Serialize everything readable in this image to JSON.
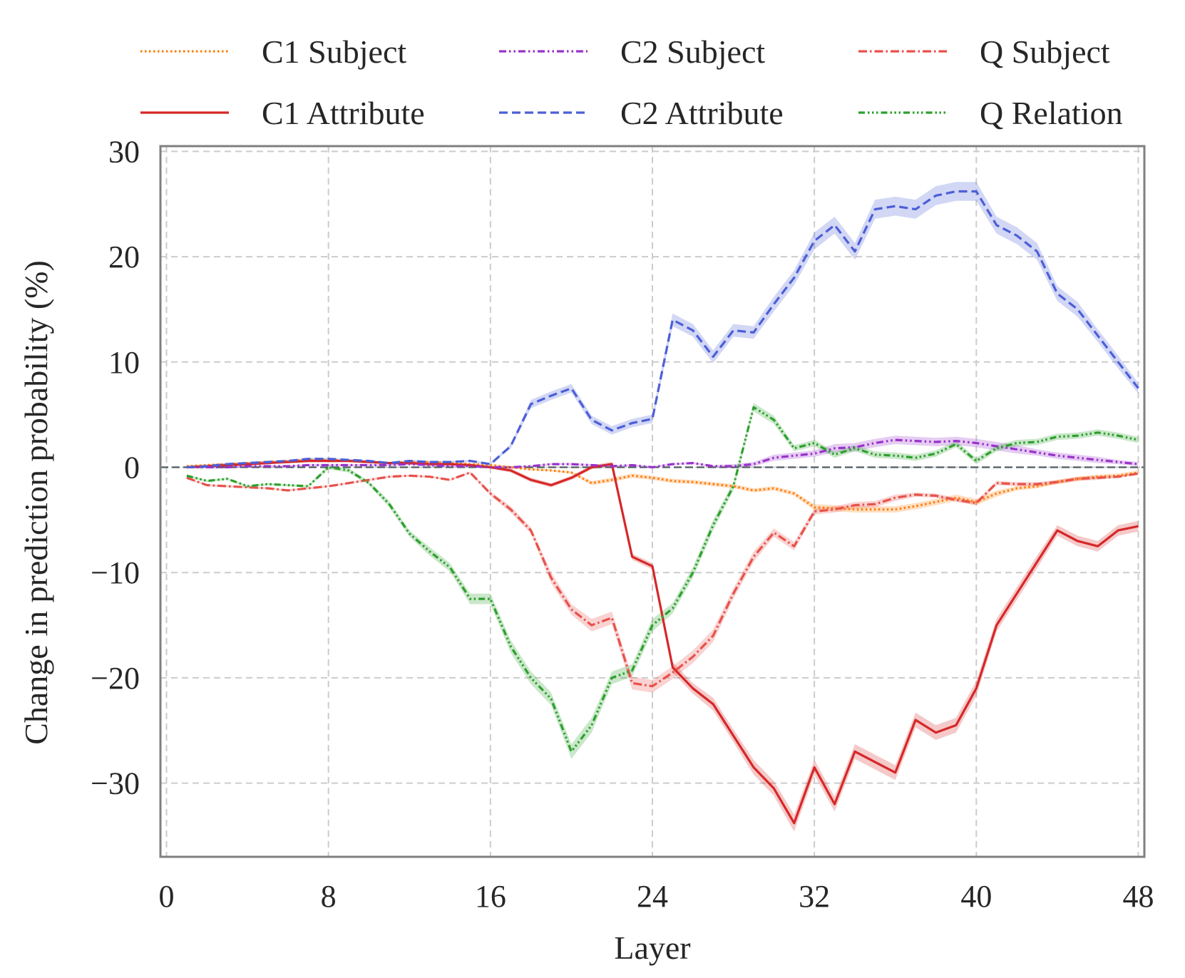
{
  "chart_data": {
    "type": "line",
    "title": "",
    "xlabel": "Layer",
    "ylabel": "Change in prediction probability (%)",
    "xlim": [
      -0.3,
      48.3
    ],
    "ylim": [
      -37,
      30.5
    ],
    "xticks": [
      0,
      8,
      16,
      24,
      32,
      40,
      48
    ],
    "yticks": [
      30,
      20,
      10,
      0,
      -10,
      -20,
      -30
    ],
    "x_tick_labels": [
      "0",
      "8",
      "16",
      "24",
      "32",
      "40",
      "48"
    ],
    "y_tick_labels": [
      "30",
      "20",
      "10",
      "0",
      "−10",
      "−20",
      "−30"
    ],
    "grid": true,
    "legend_position": "top",
    "x": [
      1,
      2,
      3,
      4,
      5,
      6,
      7,
      8,
      9,
      10,
      11,
      12,
      13,
      14,
      15,
      16,
      17,
      18,
      19,
      20,
      21,
      22,
      23,
      24,
      25,
      26,
      27,
      28,
      29,
      30,
      31,
      32,
      33,
      34,
      35,
      36,
      37,
      38,
      39,
      40,
      41,
      42,
      43,
      44,
      45,
      46,
      47,
      48
    ],
    "series": [
      {
        "name": "C1 Subject",
        "color": "#ff7f0e",
        "dash": "dotted",
        "values": [
          0.1,
          0.2,
          0.3,
          0.4,
          0.5,
          0.6,
          0.7,
          0.7,
          0.6,
          0.5,
          0.4,
          0.5,
          0.5,
          0.4,
          0.3,
          0.2,
          0.0,
          -0.2,
          -0.3,
          -0.5,
          -1.5,
          -1.2,
          -0.8,
          -1.0,
          -1.3,
          -1.4,
          -1.6,
          -1.8,
          -2.2,
          -2.0,
          -2.5,
          -3.8,
          -3.9,
          -4.0,
          -4.0,
          -4.0,
          -3.7,
          -3.3,
          -2.9,
          -3.3,
          -2.5,
          -2.0,
          -1.8,
          -1.4,
          -1.1,
          -0.9,
          -0.8,
          -0.5
        ],
        "ci": [
          0.1,
          0.1,
          0.1,
          0.1,
          0.1,
          0.1,
          0.1,
          0.1,
          0.1,
          0.1,
          0.1,
          0.1,
          0.1,
          0.1,
          0.1,
          0.1,
          0.1,
          0.1,
          0.1,
          0.1,
          0.2,
          0.2,
          0.2,
          0.2,
          0.2,
          0.2,
          0.2,
          0.2,
          0.2,
          0.2,
          0.2,
          0.3,
          0.3,
          0.3,
          0.3,
          0.3,
          0.3,
          0.3,
          0.3,
          0.3,
          0.3,
          0.2,
          0.2,
          0.2,
          0.2,
          0.2,
          0.2,
          0.2
        ]
      },
      {
        "name": "C1 Attribute",
        "color": "#d62728",
        "dash": "solid",
        "values": [
          0.0,
          0.1,
          0.2,
          0.3,
          0.4,
          0.5,
          0.6,
          0.6,
          0.6,
          0.5,
          0.4,
          0.4,
          0.3,
          0.3,
          0.2,
          0.0,
          -0.3,
          -1.2,
          -1.7,
          -1.0,
          0.0,
          0.3,
          -8.5,
          -9.4,
          -19.0,
          -21.0,
          -22.5,
          -25.5,
          -28.5,
          -30.5,
          -33.8,
          -28.5,
          -32.0,
          -27.0,
          -28.0,
          -29.0,
          -24.0,
          -25.2,
          -24.5,
          -21.0,
          -15.0,
          -12.0,
          -9.0,
          -6.0,
          -7.0,
          -7.5,
          -6.0,
          -5.6
        ],
        "ci": [
          0.1,
          0.1,
          0.1,
          0.1,
          0.1,
          0.1,
          0.1,
          0.1,
          0.1,
          0.1,
          0.1,
          0.1,
          0.1,
          0.1,
          0.1,
          0.1,
          0.2,
          0.2,
          0.2,
          0.2,
          0.2,
          0.2,
          0.3,
          0.3,
          0.5,
          0.5,
          0.6,
          0.6,
          0.7,
          0.7,
          0.8,
          0.7,
          0.7,
          0.7,
          0.7,
          0.7,
          0.7,
          0.7,
          0.7,
          0.7,
          0.6,
          0.6,
          0.6,
          0.5,
          0.5,
          0.5,
          0.5,
          0.5
        ]
      },
      {
        "name": "C2 Subject",
        "color": "#9932cc",
        "dash": "dashdotdot",
        "values": [
          0.0,
          0.0,
          0.0,
          0.1,
          0.1,
          0.1,
          0.2,
          0.2,
          0.2,
          0.2,
          0.2,
          0.3,
          0.2,
          0.1,
          0.1,
          0.0,
          0.0,
          0.1,
          0.3,
          0.3,
          0.2,
          0.1,
          0.2,
          0.0,
          0.3,
          0.4,
          0.1,
          0.1,
          0.3,
          0.9,
          1.1,
          1.3,
          1.8,
          1.9,
          2.3,
          2.6,
          2.5,
          2.4,
          2.5,
          2.3,
          2.0,
          1.7,
          1.4,
          1.1,
          0.9,
          0.7,
          0.5,
          0.3
        ],
        "ci": [
          0.1,
          0.1,
          0.1,
          0.1,
          0.1,
          0.1,
          0.1,
          0.1,
          0.1,
          0.1,
          0.1,
          0.1,
          0.1,
          0.1,
          0.1,
          0.1,
          0.1,
          0.1,
          0.1,
          0.1,
          0.1,
          0.1,
          0.1,
          0.1,
          0.1,
          0.1,
          0.1,
          0.2,
          0.2,
          0.3,
          0.3,
          0.3,
          0.4,
          0.4,
          0.4,
          0.4,
          0.4,
          0.4,
          0.4,
          0.4,
          0.4,
          0.4,
          0.3,
          0.3,
          0.3,
          0.3,
          0.2,
          0.2
        ]
      },
      {
        "name": "C2 Attribute",
        "color": "#4c5fd7",
        "dash": "dashed",
        "values": [
          0.0,
          0.1,
          0.3,
          0.4,
          0.5,
          0.6,
          0.8,
          0.8,
          0.7,
          0.6,
          0.4,
          0.6,
          0.5,
          0.5,
          0.6,
          0.3,
          2.0,
          6.0,
          6.8,
          7.5,
          4.5,
          3.5,
          4.2,
          4.6,
          14.0,
          13.0,
          10.5,
          13.0,
          12.8,
          15.5,
          18.0,
          21.5,
          23.0,
          20.5,
          24.5,
          24.8,
          24.5,
          25.8,
          26.2,
          26.2,
          23.0,
          22.0,
          20.5,
          16.5,
          15.0,
          12.5,
          10.0,
          7.5
        ],
        "ci": [
          0.1,
          0.1,
          0.1,
          0.1,
          0.1,
          0.1,
          0.1,
          0.1,
          0.1,
          0.1,
          0.1,
          0.1,
          0.1,
          0.1,
          0.1,
          0.1,
          0.2,
          0.4,
          0.4,
          0.4,
          0.4,
          0.4,
          0.4,
          0.4,
          0.6,
          0.6,
          0.6,
          0.6,
          0.6,
          0.7,
          0.7,
          0.8,
          0.8,
          0.8,
          0.9,
          0.9,
          0.9,
          0.9,
          0.9,
          0.9,
          0.8,
          0.8,
          0.8,
          0.7,
          0.7,
          0.6,
          0.6,
          0.5
        ]
      },
      {
        "name": "Q Subject",
        "color": "#e8514a",
        "dash": "dashdot",
        "values": [
          -1.0,
          -1.7,
          -1.8,
          -1.9,
          -2.0,
          -2.2,
          -2.0,
          -1.8,
          -1.5,
          -1.2,
          -0.9,
          -0.8,
          -0.9,
          -1.2,
          -0.5,
          -2.5,
          -4.0,
          -6.0,
          -10.5,
          -13.5,
          -15.0,
          -14.3,
          -20.5,
          -20.8,
          -19.5,
          -18.0,
          -16.0,
          -12.0,
          -8.5,
          -6.2,
          -7.5,
          -4.2,
          -4.0,
          -3.6,
          -3.5,
          -2.9,
          -2.6,
          -2.7,
          -3.1,
          -3.4,
          -1.5,
          -1.6,
          -1.6,
          -1.4,
          -1.1,
          -1.0,
          -0.9,
          -0.6
        ],
        "ci": [
          0.1,
          0.1,
          0.1,
          0.1,
          0.1,
          0.1,
          0.1,
          0.1,
          0.1,
          0.1,
          0.1,
          0.1,
          0.1,
          0.1,
          0.1,
          0.2,
          0.3,
          0.3,
          0.5,
          0.5,
          0.6,
          0.6,
          0.6,
          0.6,
          0.6,
          0.6,
          0.6,
          0.5,
          0.5,
          0.4,
          0.4,
          0.3,
          0.3,
          0.3,
          0.3,
          0.3,
          0.2,
          0.2,
          0.2,
          0.2,
          0.2,
          0.2,
          0.2,
          0.2,
          0.2,
          0.2,
          0.1,
          0.1
        ]
      },
      {
        "name": "Q Relation",
        "color": "#2ca02c",
        "dash": "dashdotdotdot",
        "values": [
          -0.8,
          -1.3,
          -1.1,
          -1.8,
          -1.6,
          -1.7,
          -1.8,
          0.0,
          -0.3,
          -1.5,
          -3.5,
          -6.3,
          -8.0,
          -9.5,
          -12.5,
          -12.5,
          -17.0,
          -20.0,
          -22.0,
          -27.0,
          -24.5,
          -20.0,
          -19.3,
          -15.0,
          -13.4,
          -10.0,
          -5.5,
          -1.8,
          5.7,
          4.5,
          1.8,
          2.3,
          1.2,
          1.8,
          1.2,
          1.1,
          0.9,
          1.3,
          2.2,
          0.6,
          1.8,
          2.3,
          2.4,
          2.9,
          3.0,
          3.3,
          3.0,
          2.6
        ],
        "ci": [
          0.1,
          0.1,
          0.1,
          0.1,
          0.1,
          0.1,
          0.1,
          0.2,
          0.2,
          0.2,
          0.3,
          0.3,
          0.4,
          0.4,
          0.5,
          0.5,
          0.6,
          0.6,
          0.6,
          0.7,
          0.7,
          0.6,
          0.6,
          0.6,
          0.5,
          0.5,
          0.5,
          0.4,
          0.4,
          0.4,
          0.3,
          0.3,
          0.3,
          0.3,
          0.3,
          0.3,
          0.3,
          0.3,
          0.3,
          0.3,
          0.3,
          0.3,
          0.3,
          0.3,
          0.3,
          0.3,
          0.3,
          0.3
        ]
      }
    ]
  }
}
